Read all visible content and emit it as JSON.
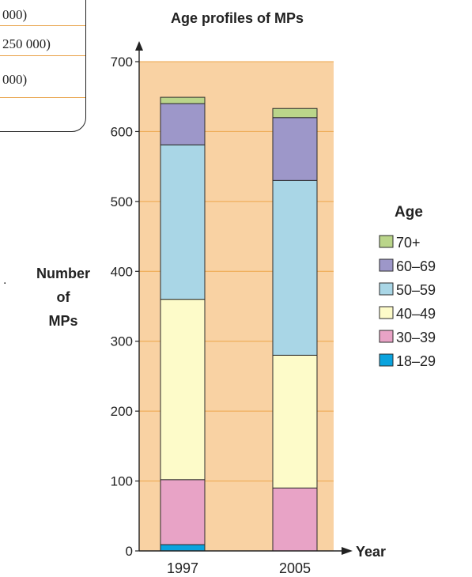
{
  "fragment": {
    "lines": [
      "000)",
      "250 000)",
      "000)"
    ]
  },
  "chart_data": {
    "type": "bar",
    "stacked": true,
    "title": "Age profiles of MPs",
    "xlabel": "Year",
    "ylabel": [
      "Number",
      "of",
      "MPs"
    ],
    "categories": [
      "1997",
      "2005"
    ],
    "ylim": [
      0,
      700
    ],
    "yticks": [
      0,
      100,
      200,
      300,
      400,
      500,
      600,
      700
    ],
    "legend_title": "Age",
    "legend_position": "right",
    "series": [
      {
        "name": "18–29",
        "color": "#0aa3de",
        "values": [
          9,
          0
        ]
      },
      {
        "name": "30–39",
        "color": "#e8a3c6",
        "values": [
          93,
          90
        ]
      },
      {
        "name": "40–49",
        "color": "#fdfbc9",
        "values": [
          258,
          190
        ]
      },
      {
        "name": "50–59",
        "color": "#a9d6e6",
        "values": [
          221,
          250
        ]
      },
      {
        "name": "60–69",
        "color": "#9d97c9",
        "values": [
          59,
          90
        ]
      },
      {
        "name": "70+",
        "color": "#bad58a",
        "values": [
          9,
          13
        ]
      }
    ],
    "plot_background": "#f9d2a3",
    "gridline_color": "#eda64b"
  }
}
